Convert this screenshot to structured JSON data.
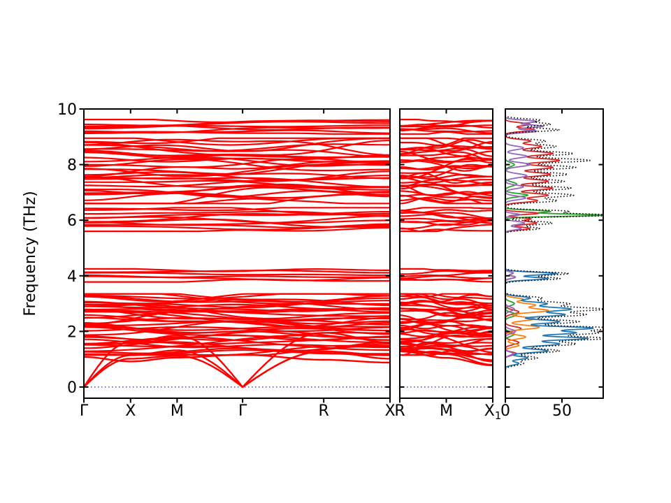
{
  "figure": {
    "background": "#ffffff",
    "axis_color": "#000000",
    "band_color": "#fe0000",
    "zero_line_color": "#2222cc",
    "total_dos_color": "#000000"
  },
  "chart_data": {
    "type": "line",
    "title": "",
    "ylabel": "Frequency (THz)",
    "ylim": [
      -0.4,
      10.0
    ],
    "yticks": [
      0,
      2,
      4,
      6,
      8,
      10
    ],
    "band_color": "#fe0000",
    "panels": [
      {
        "id": "band-main",
        "kpath": [
          {
            "label": "Γ",
            "x": 0.0
          },
          {
            "label": "X",
            "x": 0.1525
          },
          {
            "label": "M",
            "x": 0.3045
          },
          {
            "label": "Γ",
            "x": 0.5185
          },
          {
            "label": "R",
            "x": 0.7835
          },
          {
            "label": "X",
            "x": 1.0
          }
        ],
        "clusters": [
          {
            "lo": 1.15,
            "hi": 3.35,
            "n": 40,
            "wig": 0.26
          },
          {
            "lo": 3.78,
            "hi": 4.25,
            "n": 6,
            "wig": 0.09
          },
          {
            "lo": 5.6,
            "hi": 6.45,
            "n": 11,
            "wig": 0.16
          },
          {
            "lo": 6.6,
            "hi": 8.95,
            "n": 32,
            "wig": 0.3
          },
          {
            "lo": 9.1,
            "hi": 9.62,
            "n": 8,
            "wig": 0.11
          }
        ],
        "branches": [
          [
            [
              0,
              0
            ],
            [
              0.1525,
              1.02
            ],
            [
              0.3045,
              1.12
            ],
            [
              0.5185,
              0
            ],
            [
              0.7835,
              1.28
            ],
            [
              1,
              1.02
            ]
          ],
          [
            [
              0,
              0
            ],
            [
              0.1525,
              1.14
            ],
            [
              0.3045,
              1.32
            ],
            [
              0.5185,
              0
            ],
            [
              0.7835,
              1.28
            ],
            [
              1,
              1.14
            ]
          ],
          [
            [
              0,
              0
            ],
            [
              0.1525,
              1.62
            ],
            [
              0.3045,
              1.85
            ],
            [
              0.5185,
              0
            ],
            [
              0.7835,
              1.95
            ],
            [
              1,
              1.6
            ]
          ],
          [
            [
              0,
              1.08
            ],
            [
              0.1525,
              0.92
            ],
            [
              0.3045,
              1.06
            ],
            [
              0.5185,
              1.16
            ],
            [
              0.7835,
              0.98
            ],
            [
              1,
              0.88
            ]
          ]
        ]
      },
      {
        "id": "band-rmx",
        "kpath": [
          {
            "label": "R",
            "x": 0.0
          },
          {
            "label": "M",
            "x": 0.5
          },
          {
            "label": "X",
            "sub": "1",
            "x": 1.0
          }
        ],
        "clusters": [
          {
            "lo": 1.15,
            "hi": 3.35,
            "n": 40,
            "wig": 0.2
          },
          {
            "lo": 3.78,
            "hi": 4.25,
            "n": 6,
            "wig": 0.08
          },
          {
            "lo": 5.6,
            "hi": 6.45,
            "n": 11,
            "wig": 0.13
          },
          {
            "lo": 6.6,
            "hi": 8.95,
            "n": 32,
            "wig": 0.24
          },
          {
            "lo": 9.1,
            "hi": 9.62,
            "n": 8,
            "wig": 0.1
          }
        ],
        "branches": [
          [
            [
              0,
              1.28
            ],
            [
              0.5,
              1.05
            ],
            [
              1,
              0.78
            ]
          ],
          [
            [
              0,
              1.3
            ],
            [
              0.5,
              1.18
            ],
            [
              1,
              0.8
            ]
          ],
          [
            [
              0,
              1.32
            ],
            [
              0.5,
              1.22
            ],
            [
              1,
              0.97
            ]
          ],
          [
            [
              0,
              1.55
            ],
            [
              0.5,
              1.35
            ],
            [
              1,
              0.92
            ]
          ]
        ]
      },
      {
        "id": "dos",
        "xlim": [
          0,
          86
        ],
        "xticks": [
          {
            "label": "0",
            "v": 0
          },
          {
            "label": "50",
            "v": 50
          }
        ],
        "series": [
          {
            "name": "pdos-red",
            "color": "#d62728",
            "style": "solid",
            "peaks": [
              [
                1.2,
                10,
                0.08
              ],
              [
                1.6,
                12,
                0.1
              ],
              [
                2.1,
                14,
                0.1
              ],
              [
                2.7,
                12,
                0.1
              ],
              [
                5.7,
                22,
                0.07
              ],
              [
                5.9,
                28,
                0.08
              ],
              [
                6.05,
                22,
                0.06
              ],
              [
                6.25,
                30,
                0.06
              ],
              [
                6.7,
                28,
                0.08
              ],
              [
                6.9,
                38,
                0.1
              ],
              [
                7.15,
                42,
                0.09
              ],
              [
                7.4,
                38,
                0.1
              ],
              [
                7.65,
                40,
                0.1
              ],
              [
                7.9,
                42,
                0.1
              ],
              [
                8.15,
                48,
                0.1
              ],
              [
                8.4,
                42,
                0.1
              ],
              [
                8.65,
                32,
                0.1
              ],
              [
                8.85,
                22,
                0.08
              ],
              [
                9.25,
                26,
                0.08
              ],
              [
                9.45,
                22,
                0.08
              ]
            ]
          },
          {
            "name": "pdos-green",
            "color": "#2ca02c",
            "style": "solid",
            "peaks": [
              [
                1.9,
                8,
                0.1
              ],
              [
                2.6,
                10,
                0.1
              ],
              [
                3.0,
                8,
                0.1
              ],
              [
                6.18,
                88,
                0.06
              ],
              [
                6.32,
                40,
                0.06
              ],
              [
                6.9,
                20,
                0.08
              ],
              [
                7.3,
                10,
                0.1
              ],
              [
                8.0,
                8,
                0.1
              ]
            ]
          },
          {
            "name": "pdos-orange",
            "color": "#ff7f0e",
            "style": "solid",
            "peaks": [
              [
                1.5,
                12,
                0.09
              ],
              [
                1.8,
                18,
                0.1
              ],
              [
                2.15,
                30,
                0.1
              ],
              [
                2.45,
                26,
                0.1
              ],
              [
                2.75,
                38,
                0.1
              ],
              [
                2.95,
                26,
                0.09
              ],
              [
                3.15,
                16,
                0.08
              ],
              [
                3.95,
                9,
                0.07
              ],
              [
                4.1,
                7,
                0.06
              ]
            ]
          },
          {
            "name": "pdos-blue",
            "color": "#1f77b4",
            "style": "solid",
            "peaks": [
              [
                0.85,
                12,
                0.08
              ],
              [
                1.05,
                20,
                0.08
              ],
              [
                1.3,
                38,
                0.09
              ],
              [
                1.55,
                48,
                0.1
              ],
              [
                1.75,
                72,
                0.08
              ],
              [
                1.95,
                62,
                0.09
              ],
              [
                2.12,
                76,
                0.08
              ],
              [
                2.35,
                48,
                0.1
              ],
              [
                2.6,
                52,
                0.09
              ],
              [
                2.8,
                58,
                0.1
              ],
              [
                3.0,
                36,
                0.09
              ],
              [
                3.2,
                22,
                0.08
              ],
              [
                3.9,
                38,
                0.07
              ],
              [
                4.08,
                46,
                0.07
              ]
            ]
          },
          {
            "name": "pdos-purple",
            "color": "#9467bd",
            "style": "solid",
            "peaks": [
              [
                1.2,
                7,
                0.08
              ],
              [
                2.0,
                9,
                0.1
              ],
              [
                2.8,
                8,
                0.1
              ],
              [
                3.95,
                9,
                0.06
              ],
              [
                4.1,
                7,
                0.06
              ],
              [
                5.7,
                14,
                0.07
              ],
              [
                5.9,
                17,
                0.08
              ],
              [
                6.2,
                13,
                0.06
              ],
              [
                6.8,
                18,
                0.09
              ],
              [
                7.2,
                16,
                0.09
              ],
              [
                7.6,
                19,
                0.1
              ],
              [
                8.0,
                22,
                0.1
              ],
              [
                8.3,
                19,
                0.09
              ],
              [
                8.6,
                16,
                0.09
              ],
              [
                9.2,
                28,
                0.07
              ],
              [
                9.38,
                34,
                0.07
              ],
              [
                9.55,
                28,
                0.07
              ]
            ]
          },
          {
            "name": "total-dos",
            "color": "#000000",
            "style": "dotted",
            "peaks": [
              [
                0.85,
                16,
                0.1
              ],
              [
                1.05,
                28,
                0.09
              ],
              [
                1.3,
                48,
                0.1
              ],
              [
                1.55,
                62,
                0.1
              ],
              [
                1.75,
                88,
                0.09
              ],
              [
                1.95,
                80,
                0.1
              ],
              [
                2.12,
                92,
                0.09
              ],
              [
                2.35,
                65,
                0.1
              ],
              [
                2.6,
                70,
                0.1
              ],
              [
                2.8,
                85,
                0.1
              ],
              [
                3.0,
                55,
                0.1
              ],
              [
                3.2,
                32,
                0.09
              ],
              [
                3.9,
                48,
                0.08
              ],
              [
                4.08,
                56,
                0.08
              ],
              [
                5.7,
                30,
                0.08
              ],
              [
                5.9,
                42,
                0.09
              ],
              [
                6.18,
                95,
                0.07
              ],
              [
                6.32,
                55,
                0.07
              ],
              [
                6.7,
                45,
                0.09
              ],
              [
                6.9,
                60,
                0.1
              ],
              [
                7.15,
                58,
                0.1
              ],
              [
                7.4,
                52,
                0.1
              ],
              [
                7.65,
                55,
                0.1
              ],
              [
                7.9,
                62,
                0.1
              ],
              [
                8.15,
                75,
                0.1
              ],
              [
                8.4,
                60,
                0.1
              ],
              [
                8.65,
                45,
                0.1
              ],
              [
                8.85,
                35,
                0.09
              ],
              [
                9.25,
                48,
                0.08
              ],
              [
                9.45,
                40,
                0.08
              ],
              [
                9.6,
                30,
                0.07
              ]
            ]
          }
        ]
      }
    ]
  }
}
